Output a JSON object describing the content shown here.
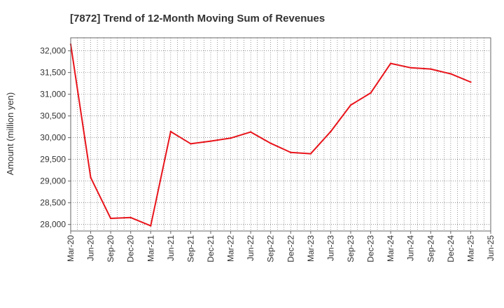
{
  "chart_data": {
    "type": "line",
    "title": "[7872]  Trend of 12-Month Moving Sum of Revenues",
    "xlabel": "",
    "ylabel": "Amount (million yen)",
    "ylim": [
      27850,
      32300
    ],
    "yticks": [
      28000,
      28500,
      29000,
      29500,
      30000,
      30500,
      31000,
      31500,
      32000
    ],
    "ytick_labels": [
      "28,000",
      "28,500",
      "29,000",
      "29,500",
      "30,000",
      "30,500",
      "31,000",
      "31,500",
      "32,000"
    ],
    "xtick_labels": [
      "Mar-20",
      "Jun-20",
      "Sep-20",
      "Dec-20",
      "Mar-21",
      "Jun-21",
      "Sep-21",
      "Dec-21",
      "Mar-22",
      "Jun-22",
      "Sep-22",
      "Dec-22",
      "Mar-23",
      "Jun-23",
      "Sep-23",
      "Dec-23",
      "Mar-24",
      "Jun-24",
      "Sep-24",
      "Dec-24",
      "Mar-25",
      "Jun-25"
    ],
    "grid": true,
    "series": [
      {
        "color": "#e8141b",
        "x": [
          "Mar-20",
          "Jun-20",
          "Sep-20",
          "Dec-20",
          "Mar-21",
          "Jun-21",
          "Sep-21",
          "Dec-21",
          "Mar-22",
          "Jun-22",
          "Sep-22",
          "Dec-22",
          "Mar-23",
          "Jun-23",
          "Sep-23",
          "Dec-23",
          "Mar-24",
          "Jun-24",
          "Sep-24",
          "Dec-24",
          "Mar-25"
        ],
        "values": [
          32150,
          29080,
          28140,
          28160,
          27970,
          30140,
          29860,
          29920,
          29990,
          30130,
          29870,
          29660,
          29630,
          30140,
          30750,
          31030,
          31710,
          31610,
          31580,
          31470,
          31280
        ]
      }
    ]
  }
}
